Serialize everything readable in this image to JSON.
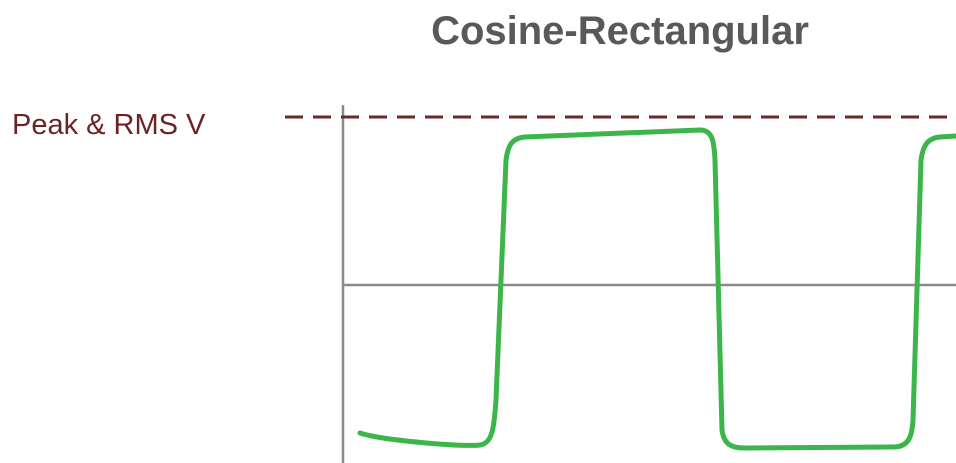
{
  "title": "Cosine-Rectangular",
  "annotation": "Peak & RMS V"
}
